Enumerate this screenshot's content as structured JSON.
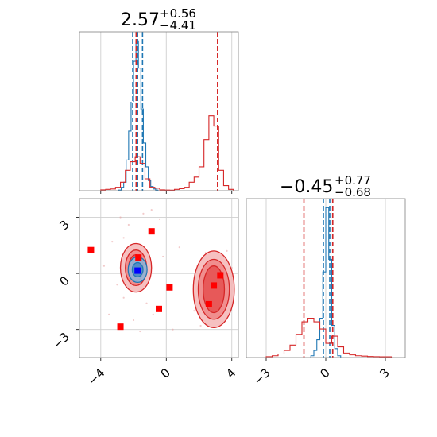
{
  "colors": {
    "blue": "#1f77b4",
    "red": "#d62728",
    "red_fill": "#f08080",
    "square_red": "#ff0000",
    "square_blue": "#0000ff",
    "grid": "#cfcfcf",
    "frame": "#7f7f7f"
  },
  "chart_data": [
    {
      "type": "histogram",
      "panel": "top-left marginal",
      "title": {
        "value": "2.57",
        "plus": "+0.56",
        "minus": "−4.41"
      },
      "xlim": [
        -5.3,
        4.4
      ],
      "grid": true,
      "xticks": [
        -4,
        0,
        4
      ],
      "series": [
        {
          "color": "#1f77b4",
          "bin_edges": [
            -2.9,
            -2.75,
            -2.6,
            -2.45,
            -2.3,
            -2.15,
            -2.0,
            -1.85,
            -1.7,
            -1.55,
            -1.4,
            -1.25,
            -1.1,
            -0.95,
            -0.8,
            -0.65,
            -0.5
          ],
          "counts": [
            0.004,
            0.02,
            0.05,
            0.18,
            0.35,
            0.52,
            0.76,
            0.88,
            0.72,
            0.48,
            0.28,
            0.14,
            0.06,
            0.025,
            0.01,
            0.004
          ],
          "quantiles": [
            -2.05,
            -1.75,
            -1.45
          ],
          "linestyle": "dashed"
        },
        {
          "color": "#d62728",
          "bin_edges": [
            -4.0,
            -3.7,
            -3.4,
            -3.1,
            -2.8,
            -2.5,
            -2.2,
            -1.9,
            -1.6,
            -1.3,
            -1.0,
            -0.7,
            -0.4,
            -0.1,
            0.2,
            0.5,
            0.8,
            1.1,
            1.4,
            1.7,
            2.0,
            2.3,
            2.6,
            2.9,
            3.2,
            3.5,
            3.8,
            4.1
          ],
          "counts": [
            0.005,
            0.008,
            0.01,
            0.02,
            0.05,
            0.12,
            0.17,
            0.2,
            0.16,
            0.07,
            0.02,
            0.015,
            0.005,
            0.004,
            0.003,
            0.008,
            0.012,
            0.02,
            0.05,
            0.08,
            0.14,
            0.3,
            0.44,
            0.38,
            0.12,
            0.03,
            0.008
          ],
          "quantiles": [
            -1.84,
            3.13
          ],
          "linestyle": "dashed"
        }
      ]
    },
    {
      "type": "contour-scatter",
      "panel": "bottom-left joint",
      "xlim": [
        -5.3,
        4.4
      ],
      "ylim": [
        -4.5,
        4.0
      ],
      "xticks": [
        -4,
        0,
        4
      ],
      "yticks": [
        -3,
        0,
        3
      ],
      "grid": true,
      "blue_contour": {
        "center": [
          -1.75,
          0.2
        ],
        "levels": [
          [
            0.33,
            0.38
          ],
          [
            0.58,
            0.68
          ]
        ]
      },
      "red_contours": [
        {
          "center": [
            -1.85,
            0.3
          ],
          "levels": [
            [
              0.45,
              0.7
            ],
            [
              0.65,
              0.95
            ],
            [
              0.95,
              1.3
            ]
          ]
        },
        {
          "center": [
            2.9,
            -0.85
          ],
          "levels": [
            [
              0.65,
              1.25
            ],
            [
              0.95,
              1.6
            ],
            [
              1.25,
              2.05
            ]
          ]
        }
      ],
      "red_squares": [
        [
          -4.6,
          1.25
        ],
        [
          -2.8,
          -2.85
        ],
        [
          -0.9,
          2.25
        ],
        [
          -1.7,
          0.85
        ],
        [
          0.2,
          -0.75
        ],
        [
          -0.45,
          -1.9
        ],
        [
          2.6,
          -1.65
        ],
        [
          2.9,
          -0.65
        ],
        [
          3.3,
          -0.1
        ]
      ],
      "blue_squares": [
        [
          -1.75,
          0.15
        ]
      ],
      "scatter_points": [
        [
          -2.6,
          1.9
        ],
        [
          -2.3,
          2.6
        ],
        [
          -1.4,
          3.2
        ],
        [
          -0.9,
          3.4
        ],
        [
          -0.4,
          2.9
        ],
        [
          -3.3,
          1.7
        ],
        [
          -3.0,
          -0.6
        ],
        [
          -2.6,
          -1.3
        ],
        [
          -1.2,
          -1.6
        ],
        [
          -0.8,
          -2.2
        ],
        [
          -1.6,
          -3.1
        ],
        [
          -2.0,
          -2.5
        ],
        [
          1.9,
          0.4
        ],
        [
          1.7,
          -2.0
        ],
        [
          2.1,
          -2.8
        ],
        [
          3.5,
          -2.6
        ],
        [
          3.9,
          -1.9
        ],
        [
          4.0,
          0.3
        ],
        [
          3.7,
          1.2
        ],
        [
          2.4,
          1.1
        ],
        [
          0.4,
          -3.0
        ],
        [
          0.8,
          1.4
        ],
        [
          -3.8,
          0.4
        ],
        [
          -3.5,
          -2.2
        ],
        [
          -0.2,
          0.9
        ],
        [
          -2.8,
          3.0
        ]
      ]
    },
    {
      "type": "histogram",
      "panel": "bottom-right marginal",
      "title": {
        "value": "−0.45",
        "plus": "+0.77",
        "minus": "−0.68"
      },
      "xlim": [
        -4.0,
        4.0
      ],
      "grid": true,
      "xticks": [
        -3,
        0,
        3
      ],
      "series": [
        {
          "color": "#1f77b4",
          "bin_edges": [
            -0.75,
            -0.6,
            -0.45,
            -0.3,
            -0.15,
            0.0,
            0.15,
            0.3,
            0.45,
            0.6,
            0.75
          ],
          "counts": [
            0.01,
            0.04,
            0.1,
            0.22,
            0.48,
            0.84,
            0.55,
            0.18,
            0.05,
            0.01
          ],
          "quantiles": [
            -0.12,
            0.2,
            0.35
          ],
          "linestyle": "dashed"
        },
        {
          "color": "#d62728",
          "bin_edges": [
            -3.0,
            -2.7,
            -2.4,
            -2.1,
            -1.8,
            -1.5,
            -1.2,
            -0.9,
            -0.6,
            -0.3,
            0.0,
            0.3,
            0.6,
            0.9,
            1.2,
            1.5,
            1.8,
            2.1,
            2.4,
            2.7,
            3.0,
            3.3
          ],
          "counts": [
            0.005,
            0.01,
            0.02,
            0.04,
            0.07,
            0.13,
            0.2,
            0.22,
            0.2,
            0.16,
            0.08,
            0.12,
            0.06,
            0.025,
            0.015,
            0.01,
            0.008,
            0.006,
            0.005,
            0.004,
            0.004
          ],
          "quantiles": [
            -1.1,
            0.35
          ],
          "linestyle": "dashed"
        }
      ]
    }
  ]
}
